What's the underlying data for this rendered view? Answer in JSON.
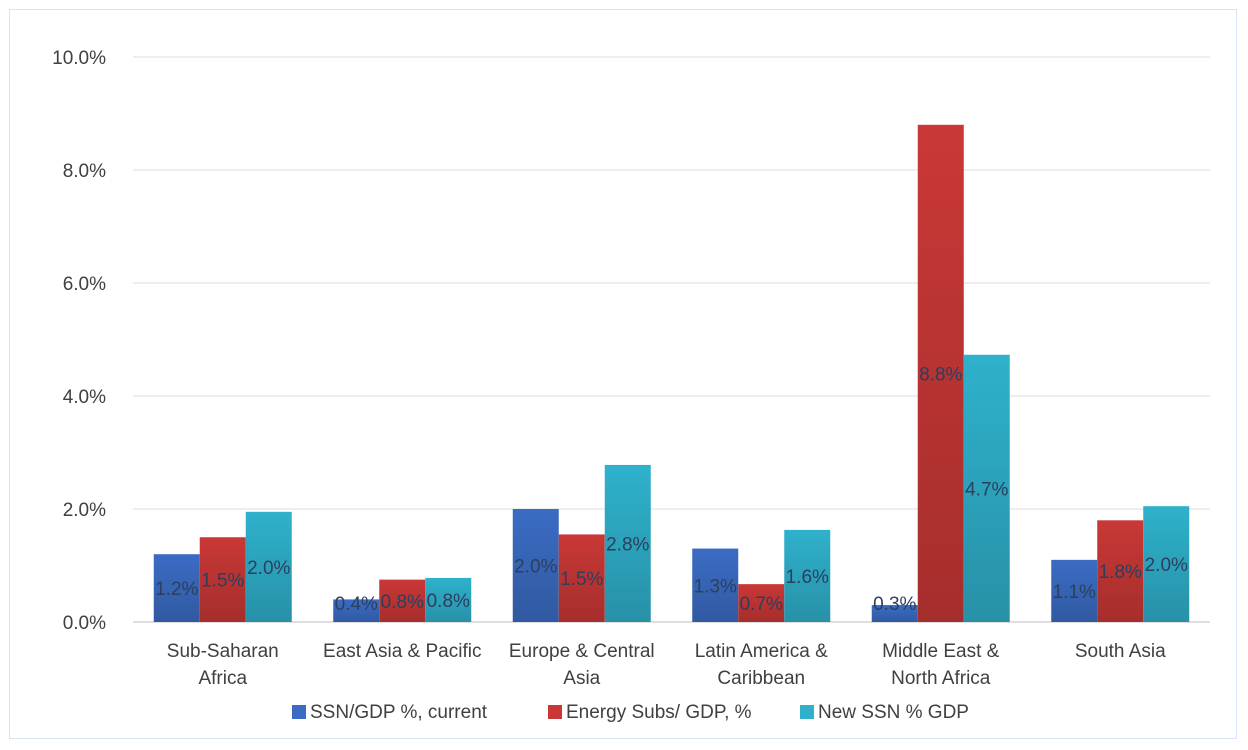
{
  "chart_data": {
    "type": "bar",
    "categories": [
      [
        "Sub-Saharan",
        "Africa"
      ],
      [
        "East Asia & Pacific"
      ],
      [
        "Europe & Central",
        "Asia"
      ],
      [
        "Latin America &",
        "Caribbean"
      ],
      [
        "Middle East &",
        "North Africa"
      ],
      [
        "South Asia"
      ]
    ],
    "series": [
      {
        "name": "SSN/GDP %, current",
        "values": [
          1.2,
          0.4,
          2.0,
          1.3,
          0.3,
          1.1
        ],
        "labels": [
          "1.2%",
          "0.4%",
          "2.0%",
          "1.3%",
          "0.3%",
          "1.1%"
        ],
        "color": "#3b6cc4"
      },
      {
        "name": "Energy Subs/ GDP, %",
        "values": [
          1.5,
          0.75,
          1.55,
          0.67,
          8.8,
          1.8
        ],
        "labels": [
          "1.5%",
          "0.8%",
          "1.5%",
          "0.7%",
          "8.8%",
          "1.8%"
        ],
        "color": "#c93836"
      },
      {
        "name": "New SSN % GDP",
        "values": [
          1.95,
          0.78,
          2.78,
          1.63,
          4.73,
          2.05
        ],
        "labels": [
          "2.0%",
          "0.8%",
          "2.8%",
          "1.6%",
          "4.7%",
          "2.0%"
        ],
        "color": "#2fb1cc"
      }
    ],
    "ylim": [
      0,
      10
    ],
    "yticks": [
      "0.0%",
      "2.0%",
      "4.0%",
      "6.0%",
      "8.0%",
      "10.0%"
    ],
    "grid": true,
    "legend_position": "bottom",
    "title": "",
    "xlabel": "",
    "ylabel": ""
  }
}
